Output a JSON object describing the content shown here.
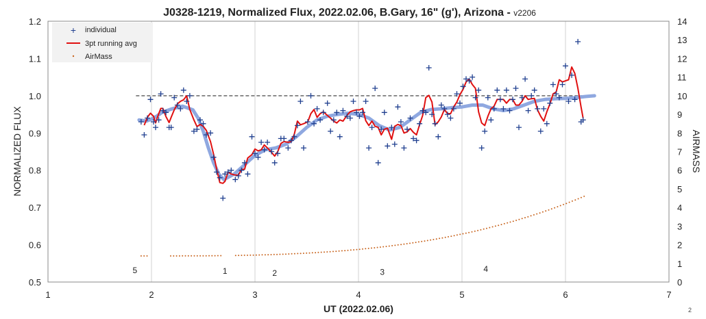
{
  "chart_data": {
    "type": "scatter",
    "title": "J0328-1219, Normalized Flux, 2022.02.06, B.Gary, 16\" (g'), Arizona - ",
    "version": "v2206",
    "xlabel": "UT (2022.02.06)",
    "ylabel": "NORMALIZED FLUX",
    "y2label": "AIRMASS",
    "xlim": [
      1,
      7
    ],
    "ylim": [
      0.5,
      1.2
    ],
    "y2lim": [
      0,
      14
    ],
    "xticks": [
      "1",
      "2",
      "3",
      "4",
      "5",
      "6",
      "7"
    ],
    "yticks": [
      "0.5",
      "0.6",
      "0.7",
      "0.8",
      "0.9",
      "1.0",
      "1.1",
      "1.2"
    ],
    "y2ticks": [
      "0",
      "1",
      "2",
      "3",
      "4",
      "5",
      "6",
      "7",
      "8",
      "9",
      "10",
      "11",
      "12",
      "13",
      "14"
    ],
    "grid": "vertical",
    "legend_position": "top-left",
    "colors": {
      "individual": "#1f3f8f",
      "running_avg": "#e01010",
      "airmass": "#c8641e",
      "smooth_model": "#8fa8e0",
      "reference_line": "#666666"
    },
    "reference_line": {
      "y": 1.0,
      "x": [
        1.85,
        6.25
      ]
    },
    "annotations": [
      {
        "text": "5",
        "x": 1.84,
        "y": 0.531
      },
      {
        "text": "1",
        "x": 2.71,
        "y": 0.529
      },
      {
        "text": "2",
        "x": 3.19,
        "y": 0.524
      },
      {
        "text": "3",
        "x": 4.23,
        "y": 0.527
      },
      {
        "text": "4",
        "x": 5.23,
        "y": 0.535
      }
    ],
    "series": [
      {
        "name": "individual",
        "kind": "scatter",
        "x": [
          1.9,
          1.93,
          1.96,
          1.99,
          2.02,
          2.04,
          2.07,
          2.09,
          2.11,
          2.14,
          2.17,
          2.19,
          2.22,
          2.25,
          2.28,
          2.31,
          2.34,
          2.37,
          2.41,
          2.44,
          2.47,
          2.5,
          2.53,
          2.57,
          2.6,
          2.63,
          2.66,
          2.69,
          2.71,
          2.74,
          2.77,
          2.81,
          2.84,
          2.87,
          2.9,
          2.93,
          2.97,
          3.0,
          3.03,
          3.06,
          3.09,
          3.12,
          3.16,
          3.19,
          3.22,
          3.25,
          3.28,
          3.32,
          3.35,
          3.38,
          3.41,
          3.44,
          3.47,
          3.51,
          3.54,
          3.57,
          3.6,
          3.63,
          3.66,
          3.7,
          3.73,
          3.76,
          3.79,
          3.82,
          3.85,
          3.89,
          3.92,
          3.95,
          3.98,
          4.01,
          4.04,
          4.07,
          4.1,
          4.13,
          4.16,
          4.19,
          4.22,
          4.25,
          4.28,
          4.32,
          4.35,
          4.38,
          4.41,
          4.44,
          4.47,
          4.5,
          4.53,
          4.56,
          4.59,
          4.62,
          4.65,
          4.68,
          4.71,
          4.74,
          4.77,
          4.8,
          4.83,
          4.86,
          4.89,
          4.92,
          4.95,
          4.98,
          5.01,
          5.04,
          5.07,
          5.1,
          5.13,
          5.16,
          5.19,
          5.22,
          5.25,
          5.28,
          5.31,
          5.34,
          5.37,
          5.4,
          5.43,
          5.46,
          5.49,
          5.52,
          5.55,
          5.58,
          5.61,
          5.64,
          5.67,
          5.7,
          5.73,
          5.76,
          5.79,
          5.82,
          5.85,
          5.88,
          5.91,
          5.94,
          5.97,
          6.0,
          6.03,
          6.06,
          6.09,
          6.12,
          6.15,
          6.17
        ],
        "values": [
          0.93,
          0.895,
          0.94,
          0.99,
          0.93,
          0.915,
          0.935,
          1.005,
          0.96,
          0.955,
          0.915,
          0.915,
          0.995,
          0.975,
          0.965,
          1.015,
          0.985,
          1.0,
          0.905,
          0.91,
          0.935,
          0.925,
          0.895,
          0.9,
          0.835,
          0.795,
          0.78,
          0.725,
          0.79,
          0.795,
          0.8,
          0.775,
          0.785,
          0.8,
          0.82,
          0.79,
          0.89,
          0.845,
          0.835,
          0.875,
          0.855,
          0.875,
          0.85,
          0.82,
          0.845,
          0.885,
          0.885,
          0.86,
          0.88,
          0.89,
          0.92,
          0.985,
          0.86,
          0.93,
          1.0,
          0.925,
          0.965,
          0.935,
          0.955,
          0.98,
          0.905,
          0.935,
          0.955,
          0.89,
          0.96,
          0.945,
          0.94,
          0.985,
          0.955,
          0.945,
          0.955,
          0.985,
          0.86,
          0.915,
          1.02,
          0.82,
          0.91,
          0.955,
          0.865,
          0.915,
          0.87,
          0.97,
          0.93,
          0.86,
          0.91,
          0.94,
          0.885,
          0.88,
          0.925,
          0.96,
          0.955,
          1.075,
          0.95,
          0.925,
          0.89,
          0.975,
          0.965,
          0.95,
          0.94,
          0.965,
          1.005,
          0.98,
          1.025,
          1.045,
          1.04,
          1.05,
          0.995,
          1.015,
          0.86,
          0.905,
          0.995,
          0.935,
          0.965,
          1.015,
          0.99,
          0.965,
          1.015,
          0.96,
          0.99,
          1.02,
          0.915,
          0.995,
          1.045,
          0.96,
          1.0,
          1.015,
          0.965,
          0.905,
          0.965,
          0.925,
          0.98,
          1.03,
          1.005,
          0.995,
          1.03,
          1.08,
          0.985,
          1.055,
          0.99,
          1.145,
          0.93,
          0.935
        ]
      },
      {
        "name": "3pt running avg",
        "kind": "line",
        "x": [
          1.93,
          1.96,
          1.99,
          2.02,
          2.04,
          2.07,
          2.09,
          2.11,
          2.14,
          2.17,
          2.19,
          2.22,
          2.25,
          2.28,
          2.31,
          2.34,
          2.37,
          2.41,
          2.44,
          2.47,
          2.5,
          2.53,
          2.57,
          2.6,
          2.63,
          2.66,
          2.69,
          2.71,
          2.74,
          2.77,
          2.81,
          2.84,
          2.87,
          2.9,
          2.93,
          2.97,
          3.0,
          3.03,
          3.06,
          3.09,
          3.12,
          3.16,
          3.19,
          3.22,
          3.25,
          3.28,
          3.32,
          3.35,
          3.38,
          3.41,
          3.44,
          3.47,
          3.51,
          3.54,
          3.57,
          3.6,
          3.63,
          3.66,
          3.7,
          3.73,
          3.76,
          3.79,
          3.82,
          3.85,
          3.89,
          3.92,
          3.95,
          3.98,
          4.01,
          4.04,
          4.07,
          4.1,
          4.13,
          4.16,
          4.19,
          4.22,
          4.25,
          4.28,
          4.32,
          4.35,
          4.38,
          4.41,
          4.44,
          4.47,
          4.5,
          4.53,
          4.56,
          4.59,
          4.62,
          4.65,
          4.68,
          4.71,
          4.74,
          4.77,
          4.8,
          4.83,
          4.86,
          4.89,
          4.92,
          4.95,
          4.98,
          5.01,
          5.04,
          5.07,
          5.1,
          5.13,
          5.16,
          5.19,
          5.22,
          5.25,
          5.28,
          5.31,
          5.34,
          5.37,
          5.4,
          5.43,
          5.46,
          5.49,
          5.52,
          5.55,
          5.58,
          5.61,
          5.64,
          5.67,
          5.7,
          5.73,
          5.76,
          5.79,
          5.82,
          5.85,
          5.88,
          5.91,
          5.94,
          5.97,
          6.0,
          6.03,
          6.06,
          6.09,
          6.12,
          6.15,
          6.17
        ],
        "values": [
          0.921,
          0.942,
          0.953,
          0.945,
          0.927,
          0.952,
          0.966,
          0.966,
          0.944,
          0.928,
          0.942,
          0.962,
          0.978,
          0.985,
          0.989,
          1.0,
          0.963,
          0.935,
          0.917,
          0.923,
          0.918,
          0.907,
          0.877,
          0.843,
          0.803,
          0.767,
          0.765,
          0.77,
          0.795,
          0.79,
          0.787,
          0.787,
          0.802,
          0.803,
          0.833,
          0.842,
          0.857,
          0.852,
          0.855,
          0.868,
          0.86,
          0.848,
          0.838,
          0.85,
          0.872,
          0.877,
          0.875,
          0.877,
          0.897,
          0.932,
          0.922,
          0.925,
          0.93,
          0.952,
          0.963,
          0.942,
          0.952,
          0.957,
          0.947,
          0.94,
          0.932,
          0.927,
          0.935,
          0.932,
          0.948,
          0.957,
          0.96,
          0.962,
          0.962,
          0.966,
          0.933,
          0.92,
          0.932,
          0.918,
          0.915,
          0.895,
          0.91,
          0.913,
          0.883,
          0.918,
          0.923,
          0.92,
          0.9,
          0.903,
          0.912,
          0.902,
          0.895,
          0.922,
          0.947,
          0.995,
          1.001,
          0.983,
          0.922,
          0.93,
          0.943,
          0.963,
          0.952,
          0.952,
          0.97,
          0.983,
          1.003,
          1.017,
          1.037,
          1.045,
          1.03,
          1.02,
          0.957,
          0.927,
          0.92,
          0.945,
          0.965,
          0.972,
          0.99,
          0.99,
          0.99,
          0.98,
          0.99,
          0.99,
          0.975,
          0.975,
          0.985,
          1.0,
          0.99,
          0.992,
          0.993,
          0.962,
          0.945,
          0.932,
          0.957,
          0.978,
          1.005,
          1.01,
          1.043,
          1.037,
          1.04,
          1.043,
          1.077,
          1.06,
          1.02,
          0.97,
          0.94
        ]
      },
      {
        "name": "model",
        "kind": "smooth-line",
        "x": [
          1.88,
          1.95,
          2.0,
          2.05,
          2.1,
          2.2,
          2.3,
          2.4,
          2.45,
          2.5,
          2.55,
          2.6,
          2.65,
          2.7,
          2.8,
          2.9,
          3.0,
          3.1,
          3.2,
          3.3,
          3.4,
          3.5,
          3.6,
          3.7,
          3.8,
          3.9,
          4.0,
          4.1,
          4.2,
          4.3,
          4.4,
          4.5,
          4.6,
          4.7,
          4.8,
          4.9,
          5.0,
          5.1,
          5.2,
          5.3,
          5.4,
          5.5,
          5.6,
          5.7,
          5.8,
          5.9,
          6.0,
          6.1,
          6.2,
          6.28
        ],
        "values": [
          0.935,
          0.932,
          0.937,
          0.945,
          0.955,
          0.965,
          0.972,
          0.962,
          0.94,
          0.905,
          0.86,
          0.82,
          0.79,
          0.775,
          0.79,
          0.815,
          0.84,
          0.855,
          0.86,
          0.87,
          0.89,
          0.915,
          0.935,
          0.945,
          0.95,
          0.953,
          0.95,
          0.94,
          0.92,
          0.908,
          0.915,
          0.935,
          0.955,
          0.963,
          0.965,
          0.968,
          0.97,
          0.975,
          0.975,
          0.965,
          0.96,
          0.965,
          0.975,
          0.985,
          0.99,
          0.992,
          0.993,
          0.995,
          0.998,
          1.0
        ]
      },
      {
        "name": "AirMass",
        "kind": "dotted",
        "axis": "right",
        "x_start": 1.9,
        "x_end": 6.18,
        "start": 1.4,
        "end": 4.6,
        "skip": [
          [
            1.96,
            2.17
          ],
          [
            2.69,
            2.79
          ]
        ]
      }
    ]
  }
}
